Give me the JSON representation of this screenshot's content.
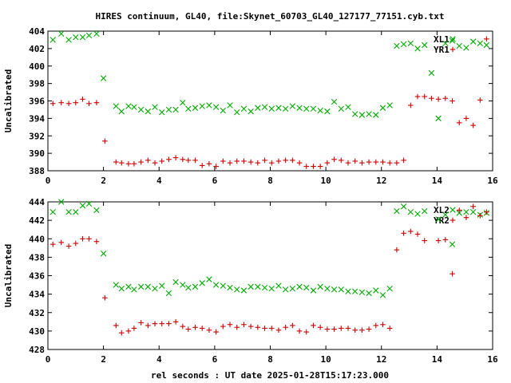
{
  "title": "HIRES continuum, GL40, file:Skynet_60703_GL40_127177_77151.cyb.txt",
  "xlabel": "rel seconds : UT date 2025-01-28T15:17:23.000",
  "colors": {
    "red": "#cc0000",
    "green": "#00aa00"
  },
  "chart_data": [
    {
      "type": "scatter",
      "ylabel": "Uncalibrated",
      "xlim": [
        0,
        16
      ],
      "ylim": [
        388,
        404
      ],
      "xticks": [
        "0",
        "2",
        "4",
        "6",
        "8",
        "10",
        "12",
        "14",
        "16"
      ],
      "yticks": [
        "388",
        "390",
        "392",
        "394",
        "396",
        "398",
        "400",
        "402",
        "404"
      ],
      "legend_position": "top-right",
      "series": [
        {
          "name": "XL1",
          "marker": "x",
          "color": "#00aa00",
          "x": [
            0.18,
            0.48,
            0.75,
            1.0,
            1.25,
            1.48,
            1.75,
            2.0,
            2.45,
            2.65,
            2.9,
            3.1,
            3.35,
            3.6,
            3.85,
            4.1,
            4.35,
            4.6,
            4.85,
            5.05,
            5.3,
            5.55,
            5.8,
            6.05,
            6.3,
            6.55,
            6.8,
            7.05,
            7.3,
            7.55,
            7.8,
            8.05,
            8.3,
            8.55,
            8.8,
            9.05,
            9.3,
            9.55,
            9.8,
            10.05,
            10.3,
            10.55,
            10.8,
            11.05,
            11.3,
            11.55,
            11.8,
            12.05,
            12.3,
            12.55,
            12.8,
            13.05,
            13.3,
            13.55,
            13.8,
            14.05,
            14.3,
            14.55,
            14.8,
            15.05,
            15.3,
            15.55,
            15.78
          ],
          "y": [
            403.0,
            403.7,
            403.0,
            403.3,
            403.3,
            403.5,
            403.7,
            398.6,
            395.4,
            394.8,
            395.4,
            395.3,
            395.0,
            394.8,
            395.3,
            394.7,
            395.0,
            395.0,
            395.8,
            395.1,
            395.2,
            395.4,
            395.5,
            395.3,
            394.9,
            395.5,
            394.7,
            395.1,
            394.8,
            395.2,
            395.3,
            395.1,
            395.2,
            395.1,
            395.4,
            395.2,
            395.1,
            395.1,
            394.9,
            394.8,
            395.9,
            395.1,
            395.3,
            394.5,
            394.4,
            394.5,
            394.4,
            395.2,
            395.5,
            402.3,
            402.5,
            402.6,
            402.0,
            402.4,
            399.2,
            394.0,
            402.6,
            402.9,
            402.3,
            402.1,
            402.8,
            402.6,
            402.4
          ]
        },
        {
          "name": "YR1",
          "marker": "+",
          "color": "#cc0000",
          "x": [
            0.18,
            0.48,
            0.75,
            1.0,
            1.25,
            1.48,
            1.75,
            2.05,
            2.45,
            2.65,
            2.9,
            3.1,
            3.35,
            3.6,
            3.85,
            4.1,
            4.35,
            4.6,
            4.85,
            5.05,
            5.3,
            5.55,
            5.8,
            6.05,
            6.3,
            6.55,
            6.8,
            7.05,
            7.3,
            7.55,
            7.8,
            8.05,
            8.3,
            8.55,
            8.8,
            9.05,
            9.3,
            9.55,
            9.8,
            10.05,
            10.3,
            10.55,
            10.8,
            11.05,
            11.3,
            11.55,
            11.8,
            12.05,
            12.3,
            12.55,
            12.8,
            13.05,
            13.3,
            13.55,
            13.8,
            14.05,
            14.3,
            14.55,
            14.8,
            15.05,
            15.3,
            15.55,
            15.78
          ],
          "y": [
            395.7,
            395.8,
            395.7,
            395.8,
            396.2,
            395.7,
            395.8,
            391.4,
            389.0,
            388.9,
            388.8,
            388.8,
            389.0,
            389.2,
            388.9,
            389.1,
            389.3,
            389.5,
            389.3,
            389.2,
            389.2,
            388.6,
            388.8,
            388.5,
            389.1,
            388.9,
            389.1,
            389.1,
            389.0,
            388.9,
            389.2,
            388.9,
            389.1,
            389.2,
            389.2,
            388.9,
            388.5,
            388.5,
            388.5,
            388.9,
            389.3,
            389.2,
            388.9,
            389.1,
            388.9,
            389.0,
            389.0,
            389.0,
            388.9,
            388.9,
            389.2,
            395.5,
            396.5,
            396.5,
            396.3,
            396.2,
            396.3,
            396.0,
            393.5,
            394.0,
            393.2,
            396.1,
            403.1
          ]
        }
      ]
    },
    {
      "type": "scatter",
      "ylabel": "Uncalibrated",
      "xlim": [
        0,
        16
      ],
      "ylim": [
        428,
        444
      ],
      "xticks": [
        "0",
        "2",
        "4",
        "6",
        "8",
        "10",
        "12",
        "14",
        "16"
      ],
      "yticks": [
        "428",
        "430",
        "432",
        "434",
        "436",
        "438",
        "440",
        "442",
        "444"
      ],
      "legend_position": "top-right",
      "series": [
        {
          "name": "XL2",
          "marker": "x",
          "color": "#00aa00",
          "x": [
            0.18,
            0.48,
            0.75,
            1.0,
            1.25,
            1.48,
            1.75,
            2.0,
            2.45,
            2.65,
            2.9,
            3.1,
            3.35,
            3.6,
            3.85,
            4.1,
            4.35,
            4.6,
            4.85,
            5.05,
            5.3,
            5.55,
            5.8,
            6.05,
            6.3,
            6.55,
            6.8,
            7.05,
            7.3,
            7.55,
            7.8,
            8.05,
            8.3,
            8.55,
            8.8,
            9.05,
            9.3,
            9.55,
            9.8,
            10.05,
            10.3,
            10.55,
            10.8,
            11.05,
            11.3,
            11.55,
            11.8,
            12.05,
            12.3,
            12.55,
            12.8,
            13.05,
            13.3,
            13.55,
            14.05,
            14.3,
            14.55,
            14.8,
            15.05,
            15.3,
            15.55,
            15.78
          ],
          "y": [
            442.9,
            444.0,
            442.9,
            442.9,
            443.6,
            443.8,
            443.1,
            438.4,
            435.0,
            434.6,
            434.8,
            434.5,
            434.8,
            434.8,
            434.6,
            434.9,
            434.1,
            435.3,
            435.0,
            434.7,
            434.8,
            435.2,
            435.6,
            435.0,
            434.9,
            434.7,
            434.5,
            434.4,
            434.8,
            434.8,
            434.7,
            434.6,
            434.9,
            434.5,
            434.6,
            434.8,
            434.7,
            434.4,
            434.8,
            434.6,
            434.5,
            434.5,
            434.3,
            434.3,
            434.2,
            434.1,
            434.4,
            433.9,
            434.6,
            443.0,
            443.5,
            442.9,
            442.7,
            443.0,
            442.1,
            442.6,
            439.4,
            442.8,
            442.9,
            442.9,
            442.6,
            442.8
          ]
        },
        {
          "name": "YR2",
          "marker": "+",
          "color": "#cc0000",
          "x": [
            0.18,
            0.48,
            0.75,
            1.0,
            1.25,
            1.48,
            1.75,
            2.05,
            2.45,
            2.65,
            2.9,
            3.1,
            3.35,
            3.6,
            3.85,
            4.1,
            4.35,
            4.6,
            4.85,
            5.05,
            5.3,
            5.55,
            5.8,
            6.05,
            6.3,
            6.55,
            6.8,
            7.05,
            7.3,
            7.55,
            7.8,
            8.05,
            8.3,
            8.55,
            8.8,
            9.05,
            9.3,
            9.55,
            9.8,
            10.05,
            10.3,
            10.55,
            10.8,
            11.05,
            11.3,
            11.55,
            11.8,
            12.05,
            12.3,
            12.55,
            12.8,
            13.05,
            13.3,
            13.55,
            14.05,
            14.3,
            14.55,
            14.8,
            15.05,
            15.3,
            15.55,
            15.78
          ],
          "y": [
            439.4,
            439.6,
            439.2,
            439.5,
            440.0,
            440.0,
            439.7,
            433.6,
            430.6,
            429.8,
            430.0,
            430.3,
            430.9,
            430.6,
            430.8,
            430.8,
            430.8,
            431.0,
            430.5,
            430.2,
            430.4,
            430.3,
            430.1,
            429.9,
            430.5,
            430.7,
            430.4,
            430.7,
            430.5,
            430.4,
            430.3,
            430.3,
            430.1,
            430.4,
            430.6,
            430.0,
            429.9,
            430.6,
            430.4,
            430.2,
            430.2,
            430.3,
            430.3,
            430.1,
            430.1,
            430.2,
            430.6,
            430.7,
            430.3,
            438.8,
            440.6,
            440.8,
            440.5,
            439.8,
            439.8,
            439.9,
            436.2,
            443.1,
            442.3,
            443.5,
            442.5,
            442.9
          ]
        }
      ]
    }
  ]
}
